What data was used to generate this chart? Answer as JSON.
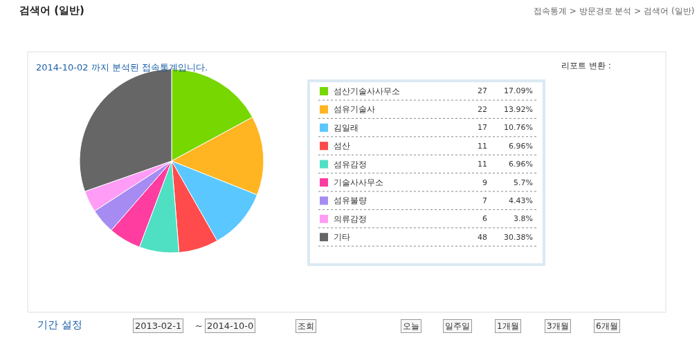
{
  "chart_data": {
    "type": "pie",
    "title": "검색어 (일반)",
    "subtitle": "2014-10-02 까지 분석된 접속통계입니다.",
    "categories": [
      "섬산기술사사무소",
      "섬유기술사",
      "김일래",
      "섬산",
      "섬유감정",
      "기술사사무소",
      "섬유불량",
      "의류감정",
      "기타"
    ],
    "values": [
      17.09,
      13.92,
      10.76,
      6.96,
      6.96,
      5.7,
      4.43,
      3.8,
      30.38
    ],
    "value_labels": [
      "17.09%",
      "13.92%",
      "10.76%",
      "6.96%",
      "6.96%",
      "5.7%",
      "4.43%",
      "3.8%",
      "30.38%"
    ],
    "colors": [
      "#77d700",
      "#ffb522",
      "#5ac8ff",
      "#ff4b4b",
      "#4fe0c4",
      "#ff3da0",
      "#a68cf2",
      "#ff9cf5",
      "#666666"
    ],
    "legend": "right",
    "annotations": [
      "접속통계 > 방문경로 분석 > 검색어 (일반)",
      "리포트 변환 :",
      "기간 설정",
      "2013-02-1",
      "~",
      "2014-10-0",
      "조회",
      "오늘",
      "일주일",
      "1개월",
      "3개월",
      "6개월",
      "27",
      "22",
      "17",
      "11",
      "11",
      "9",
      "7",
      "6",
      "48"
    ]
  }
}
